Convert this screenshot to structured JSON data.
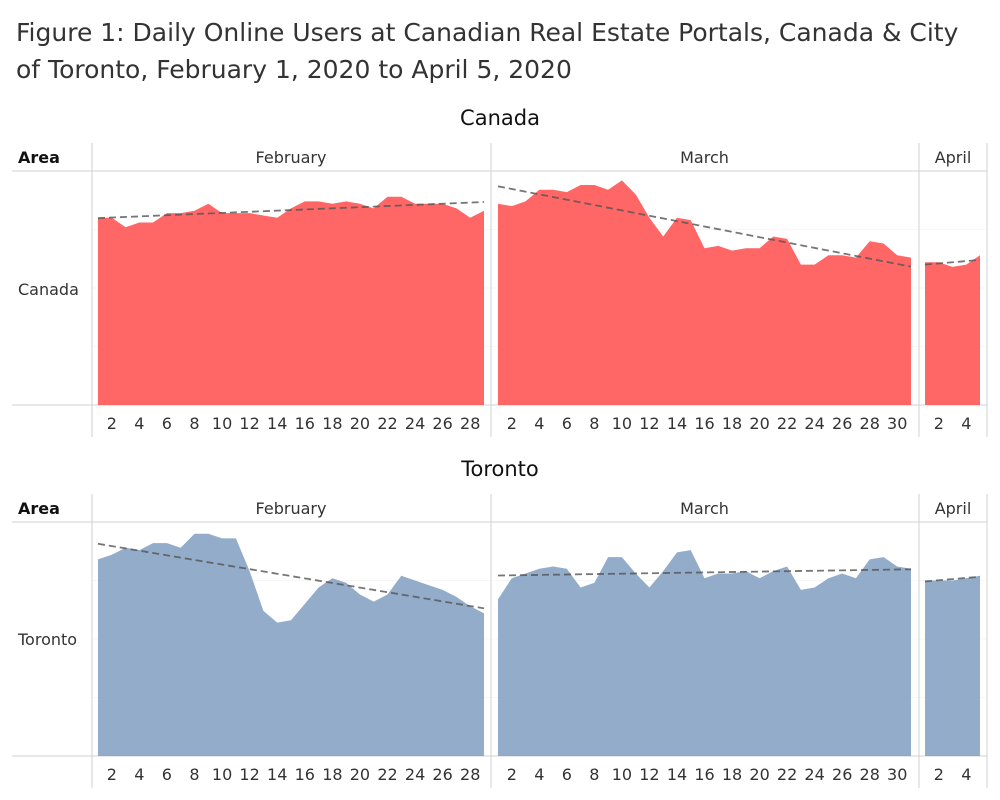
{
  "title": "Figure 1: Daily Online Users at Canadian Real Estate Portals, Canada & City of Toronto, February 1, 2020 to April 5, 2020",
  "row_header": "Area",
  "colors": {
    "Canada": "#ff5a5a",
    "Toronto": "#7f9ec1",
    "trend": "#555555",
    "grid": "#dddddd"
  },
  "chart_data": [
    {
      "type": "area",
      "title": "Canada",
      "row_label": "Canada",
      "trendline": "dashed linear trend per month",
      "months": [
        {
          "name": "February",
          "x": [
            1,
            2,
            3,
            4,
            5,
            6,
            7,
            8,
            9,
            10,
            11,
            12,
            13,
            14,
            15,
            16,
            17,
            18,
            19,
            20,
            21,
            22,
            23,
            24,
            25,
            26,
            27,
            28,
            29
          ],
          "y": [
            80,
            80,
            76,
            78,
            78,
            82,
            82,
            83,
            86,
            82,
            82,
            82,
            81,
            80,
            84,
            87,
            87,
            86,
            87,
            86,
            84,
            89,
            89,
            86,
            86,
            86,
            84,
            80,
            83
          ],
          "ticks": [
            "2",
            "4",
            "6",
            "8",
            "10",
            "12",
            "14",
            "16",
            "18",
            "20",
            "22",
            "24",
            "26",
            "28"
          ]
        },
        {
          "name": "March",
          "x": [
            1,
            2,
            3,
            4,
            5,
            6,
            7,
            8,
            9,
            10,
            11,
            12,
            13,
            14,
            15,
            16,
            17,
            18,
            19,
            20,
            21,
            22,
            23,
            24,
            25,
            26,
            27,
            28,
            29,
            30,
            31
          ],
          "y": [
            86,
            85,
            87,
            92,
            92,
            91,
            94,
            94,
            92,
            96,
            90,
            80,
            72,
            80,
            79,
            67,
            68,
            66,
            67,
            67,
            72,
            71,
            60,
            60,
            64,
            64,
            63,
            70,
            69,
            64,
            63
          ],
          "ticks": [
            "2",
            "4",
            "6",
            "8",
            "10",
            "12",
            "14",
            "16",
            "18",
            "20",
            "22",
            "24",
            "26",
            "28",
            "30"
          ]
        },
        {
          "name": "April",
          "x": [
            1,
            2,
            3,
            4,
            5
          ],
          "y": [
            61,
            61,
            59,
            60,
            64
          ],
          "ticks": [
            "2",
            "4"
          ]
        }
      ]
    },
    {
      "type": "area",
      "title": "Toronto",
      "row_label": "Toronto",
      "trendline": "dashed linear trend per month",
      "months": [
        {
          "name": "February",
          "x": [
            1,
            2,
            3,
            4,
            5,
            6,
            7,
            8,
            9,
            10,
            11,
            12,
            13,
            14,
            15,
            16,
            17,
            18,
            19,
            20,
            21,
            22,
            23,
            24,
            25,
            26,
            27,
            28,
            29
          ],
          "y": [
            84,
            86,
            89,
            88,
            91,
            91,
            89,
            95,
            95,
            93,
            93,
            79,
            62,
            57,
            58,
            65,
            72,
            76,
            74,
            69,
            66,
            69,
            77,
            75,
            73,
            71,
            68,
            64,
            61
          ],
          "ticks": [
            "2",
            "4",
            "6",
            "8",
            "10",
            "12",
            "14",
            "16",
            "18",
            "20",
            "22",
            "24",
            "26",
            "28"
          ]
        },
        {
          "name": "March",
          "x": [
            1,
            2,
            3,
            4,
            5,
            6,
            7,
            8,
            9,
            10,
            11,
            12,
            13,
            14,
            15,
            16,
            17,
            18,
            19,
            20,
            21,
            22,
            23,
            24,
            25,
            26,
            27,
            28,
            29,
            30,
            31
          ],
          "y": [
            67,
            76,
            78,
            80,
            81,
            80,
            72,
            74,
            85,
            85,
            78,
            72,
            79,
            87,
            88,
            76,
            78,
            78,
            79,
            76,
            79,
            81,
            71,
            72,
            76,
            78,
            76,
            84,
            85,
            81,
            80
          ],
          "ticks": [
            "2",
            "4",
            "6",
            "8",
            "10",
            "12",
            "14",
            "16",
            "18",
            "20",
            "22",
            "24",
            "26",
            "28",
            "30"
          ]
        },
        {
          "name": "April",
          "x": [
            1,
            2,
            3,
            4,
            5
          ],
          "y": [
            75,
            75,
            75,
            76,
            77
          ],
          "ticks": [
            "2",
            "4"
          ]
        }
      ]
    }
  ]
}
